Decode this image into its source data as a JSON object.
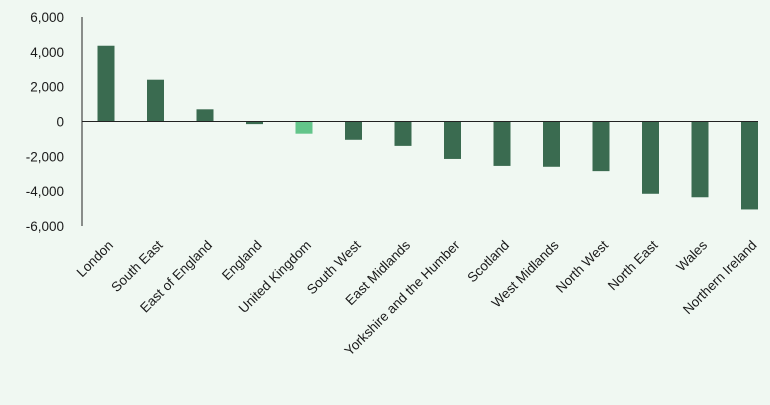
{
  "chart_data": {
    "type": "bar",
    "categories": [
      "London",
      "South East",
      "East of England",
      "England",
      "United Kingdom",
      "South West",
      "East Midlands",
      "Yorkshire and the Humber",
      "Scotland",
      "West Midlands",
      "North West",
      "North East",
      "Wales",
      "Northern Ireland"
    ],
    "values": [
      4350,
      2400,
      700,
      -150,
      -700,
      -1050,
      -1400,
      -2150,
      -2550,
      -2600,
      -2850,
      -4150,
      -4350,
      -5050
    ],
    "highlight_category": "United Kingdom",
    "title": "",
    "xlabel": "",
    "ylabel": "",
    "ylim": [
      -6000,
      6000
    ],
    "yticks": [
      6000,
      4000,
      2000,
      0,
      -2000,
      -4000,
      -6000
    ],
    "ytick_labels": [
      "6,000",
      "4,000",
      "2,000",
      "0",
      "-2,000",
      "-4,000",
      "-6,000"
    ],
    "grid": false,
    "legend": "none",
    "colors": {
      "bar": "#3a6b50",
      "highlight": "#63c58a",
      "axis": "#222222",
      "text": "#1a1a1a",
      "background": "#f0f8f2"
    }
  }
}
